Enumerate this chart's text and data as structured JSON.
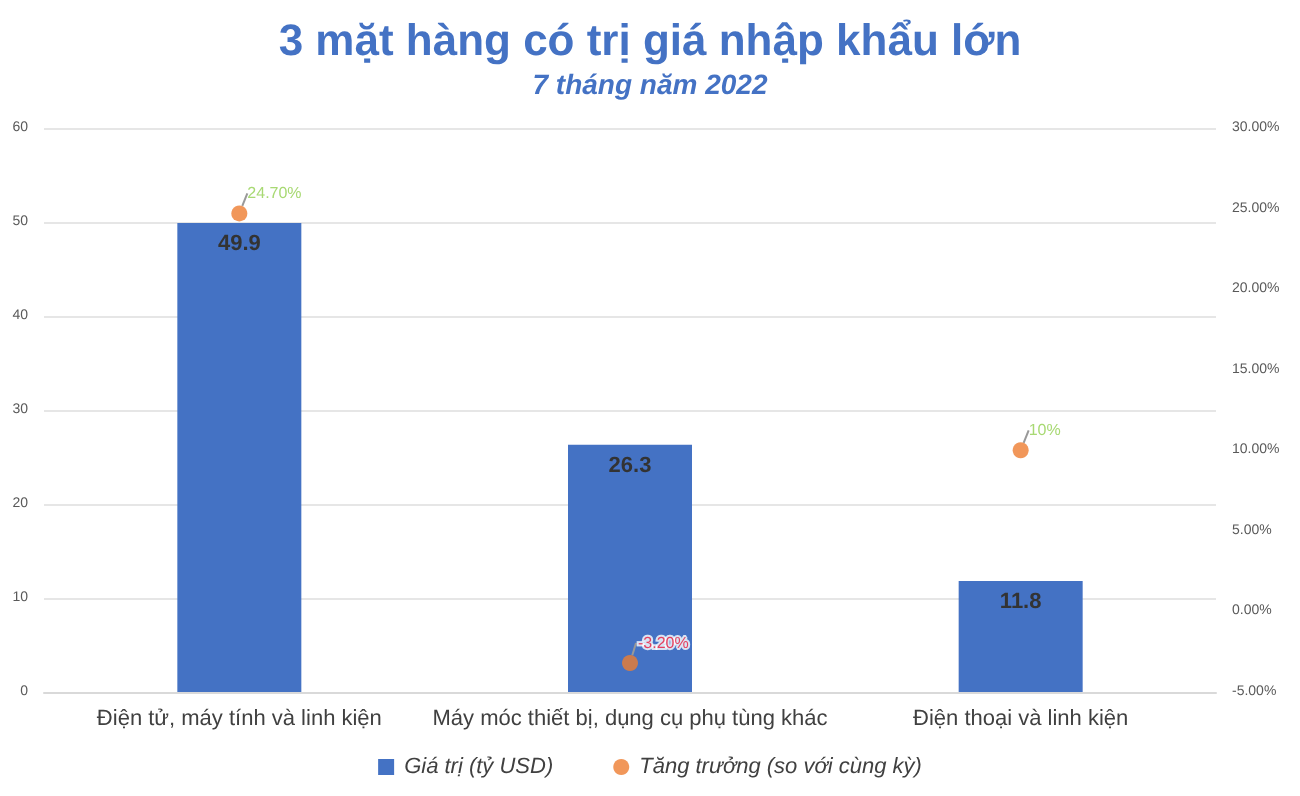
{
  "chart_data": {
    "type": "bar",
    "title": "3 mặt hàng có trị giá nhập khẩu lớn",
    "subtitle": "7 tháng năm 2022",
    "categories": [
      "Điện tử, máy tính và linh kiện",
      "Máy móc thiết bị, dụng cụ phụ tùng khác",
      "Điện thoại và linh kiện"
    ],
    "series": [
      {
        "name": "Giá trị (tỷ USD)",
        "color": "#4472c4",
        "values": [
          49.9,
          26.3,
          11.8
        ],
        "data_labels": true
      },
      {
        "name": "Tăng trưởng (so với cùng kỳ)",
        "type": "scatter",
        "axis": "y2",
        "color": "#ed7d31",
        "marker": "circle",
        "values": [
          24.7,
          -3.2,
          10
        ],
        "value_labels": [
          "24.70%",
          "-3.20%",
          "10%"
        ]
      }
    ],
    "ylim": [
      0,
      60
    ],
    "yticks": [
      0,
      10,
      20,
      30,
      40,
      50,
      60
    ],
    "y2lim": [
      -5,
      30
    ],
    "y2ticks": [
      {
        "value": -5,
        "label": "-5.00%"
      },
      {
        "value": 0,
        "label": "0.00%"
      },
      {
        "value": 5,
        "label": "5.00%"
      },
      {
        "value": 10,
        "label": "10.00%"
      },
      {
        "value": 15,
        "label": "15.00%"
      },
      {
        "value": 20,
        "label": "20.00%"
      },
      {
        "value": 25,
        "label": "25.00%"
      },
      {
        "value": 30,
        "label": "30.00%"
      }
    ],
    "grid": "y",
    "legend": "bottom"
  }
}
